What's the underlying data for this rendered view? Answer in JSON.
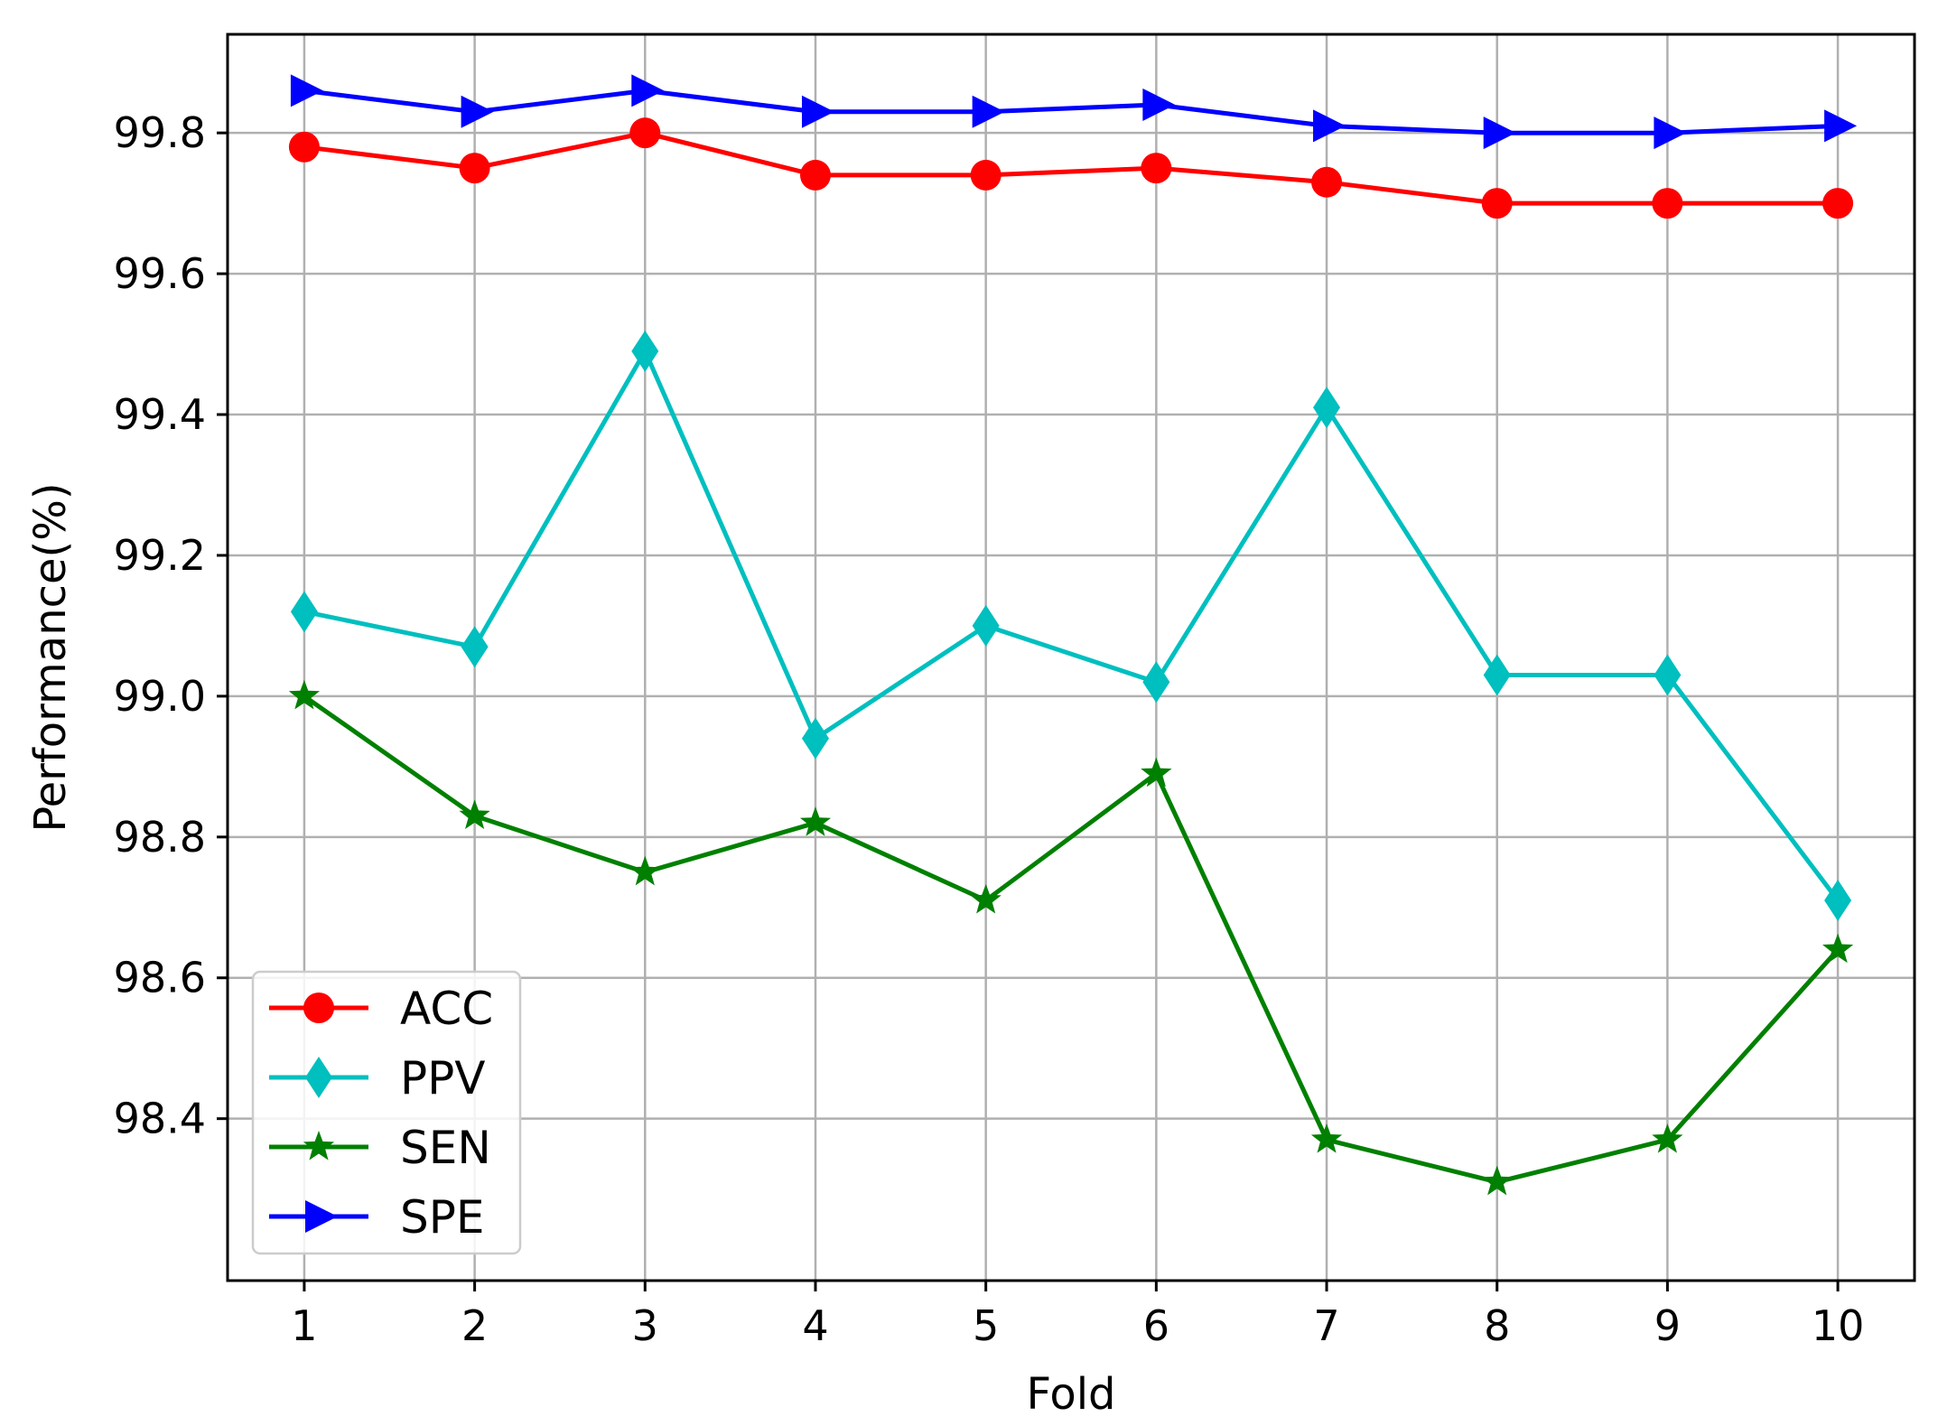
{
  "chart_data": {
    "type": "line",
    "title": "",
    "xlabel": "Fold",
    "ylabel": "Performance(%)",
    "categories": [
      1,
      2,
      3,
      4,
      5,
      6,
      7,
      8,
      9,
      10
    ],
    "x_ticks": [
      "1",
      "2",
      "3",
      "4",
      "5",
      "6",
      "7",
      "8",
      "9",
      "10"
    ],
    "y_ticks": [
      "98.4",
      "98.6",
      "98.8",
      "99.0",
      "99.2",
      "99.4",
      "99.6",
      "99.8"
    ],
    "xlim": [
      0.55,
      10.45
    ],
    "ylim": [
      98.17,
      99.94
    ],
    "grid": true,
    "legend_position": "lower-left",
    "series": [
      {
        "name": "ACC",
        "color": "#ff0000",
        "marker": "circle",
        "values": [
          99.78,
          99.75,
          99.8,
          99.74,
          99.74,
          99.75,
          99.73,
          99.7,
          99.7,
          99.7
        ]
      },
      {
        "name": "PPV",
        "color": "#00bfbf",
        "marker": "diamond",
        "values": [
          99.12,
          99.07,
          99.49,
          98.94,
          99.1,
          99.02,
          99.41,
          99.03,
          99.03,
          98.71
        ]
      },
      {
        "name": "SEN",
        "color": "#008000",
        "marker": "star",
        "values": [
          99.0,
          98.83,
          98.75,
          98.82,
          98.71,
          98.89,
          98.37,
          98.31,
          98.37,
          98.64
        ]
      },
      {
        "name": "SPE",
        "color": "#0000ff",
        "marker": "triangle-right",
        "values": [
          99.86,
          99.83,
          99.86,
          99.83,
          99.83,
          99.84,
          99.81,
          99.8,
          99.8,
          99.81
        ]
      }
    ]
  }
}
